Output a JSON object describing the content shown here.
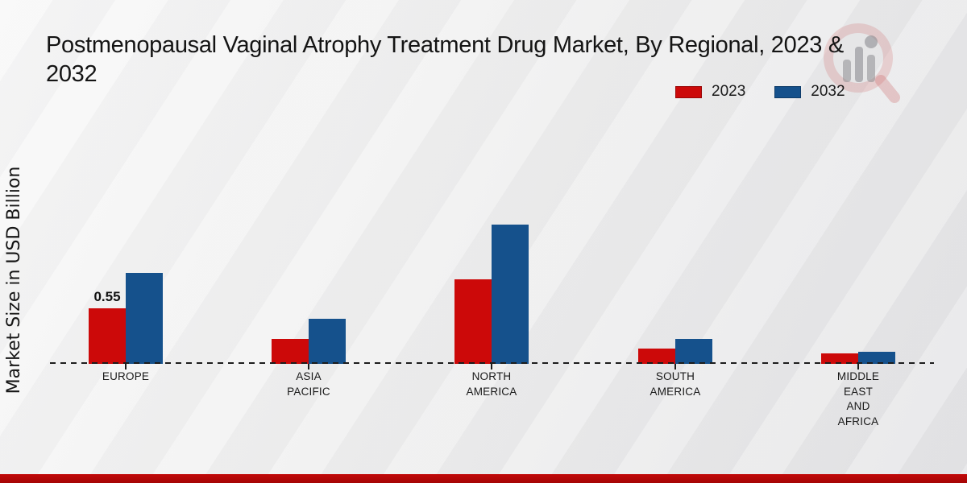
{
  "chart_data": {
    "type": "bar",
    "title": "Postmenopausal Vaginal Atrophy Treatment Drug Market, By Regional, 2023 &\n2032",
    "ylabel": "Market Size in USD Billion",
    "xlabel": "",
    "categories": [
      "EUROPE",
      "ASIA\nPACIFIC",
      "NORTH\nAMERICA",
      "SOUTH\nAMERICA",
      "MIDDLE\nEAST\nAND\nAFRICA"
    ],
    "series": [
      {
        "name": "2023",
        "color": "#cc0909",
        "values": [
          0.55,
          0.25,
          0.84,
          0.15,
          0.1
        ]
      },
      {
        "name": "2032",
        "color": "#15518c",
        "values": [
          0.9,
          0.45,
          1.38,
          0.25,
          0.12
        ]
      }
    ],
    "data_labels": [
      {
        "category_index": 0,
        "series_index": 0,
        "text": "0.55"
      }
    ],
    "ylim": [
      0,
      1.6
    ],
    "grid": false,
    "axis_line_style": "dashed",
    "legend_position": "top-right",
    "colors": {
      "accent_red": "#cc0909",
      "accent_blue": "#15518c",
      "bottom_band": "#b30808",
      "text": "#141414",
      "background": "#ececee"
    }
  }
}
